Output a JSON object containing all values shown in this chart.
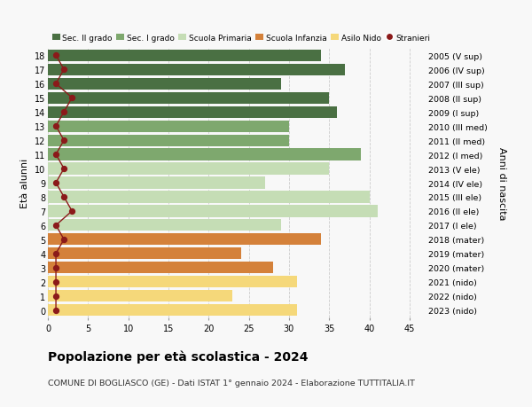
{
  "ages": [
    0,
    1,
    2,
    3,
    4,
    5,
    6,
    7,
    8,
    9,
    10,
    11,
    12,
    13,
    14,
    15,
    16,
    17,
    18
  ],
  "bar_values": [
    31,
    23,
    31,
    28,
    24,
    34,
    29,
    41,
    40,
    27,
    35,
    39,
    30,
    30,
    36,
    35,
    29,
    37,
    34
  ],
  "right_labels": [
    "2023 (nido)",
    "2022 (nido)",
    "2021 (nido)",
    "2020 (mater)",
    "2019 (mater)",
    "2018 (mater)",
    "2017 (I ele)",
    "2016 (II ele)",
    "2015 (III ele)",
    "2014 (IV ele)",
    "2013 (V ele)",
    "2012 (I med)",
    "2011 (II med)",
    "2010 (III med)",
    "2009 (I sup)",
    "2008 (II sup)",
    "2007 (III sup)",
    "2006 (IV sup)",
    "2005 (V sup)"
  ],
  "stranieri_values": [
    1,
    1,
    1,
    1,
    1,
    2,
    1,
    3,
    2,
    1,
    2,
    1,
    2,
    1,
    2,
    3,
    1,
    2,
    1
  ],
  "bar_colors": {
    "sec2": "#4a7043",
    "sec1": "#7ea86e",
    "primaria": "#c5ddb5",
    "infanzia": "#d4813a",
    "nido": "#f5d87a"
  },
  "category_ranges": {
    "sec2": [
      14,
      18
    ],
    "sec1": [
      11,
      13
    ],
    "primaria": [
      6,
      10
    ],
    "infanzia": [
      3,
      5
    ],
    "nido": [
      0,
      2
    ]
  },
  "legend_labels": [
    "Sec. II grado",
    "Sec. I grado",
    "Scuola Primaria",
    "Scuola Infanzia",
    "Asilo Nido",
    "Stranieri"
  ],
  "legend_colors": [
    "#4a7043",
    "#7ea86e",
    "#c5ddb5",
    "#d4813a",
    "#f5d87a",
    "#8b1a1a"
  ],
  "ylabel_left": "Età alunni",
  "ylabel_right": "Anni di nascita",
  "title": "Popolazione per età scolastica - 2024",
  "subtitle": "COMUNE DI BOGLIASCO (GE) - Dati ISTAT 1° gennaio 2024 - Elaborazione TUTTITALIA.IT",
  "xlim": [
    0,
    47
  ],
  "background_color": "#f8f8f8",
  "xticks": [
    0,
    5,
    10,
    15,
    20,
    25,
    30,
    35,
    40,
    45
  ]
}
